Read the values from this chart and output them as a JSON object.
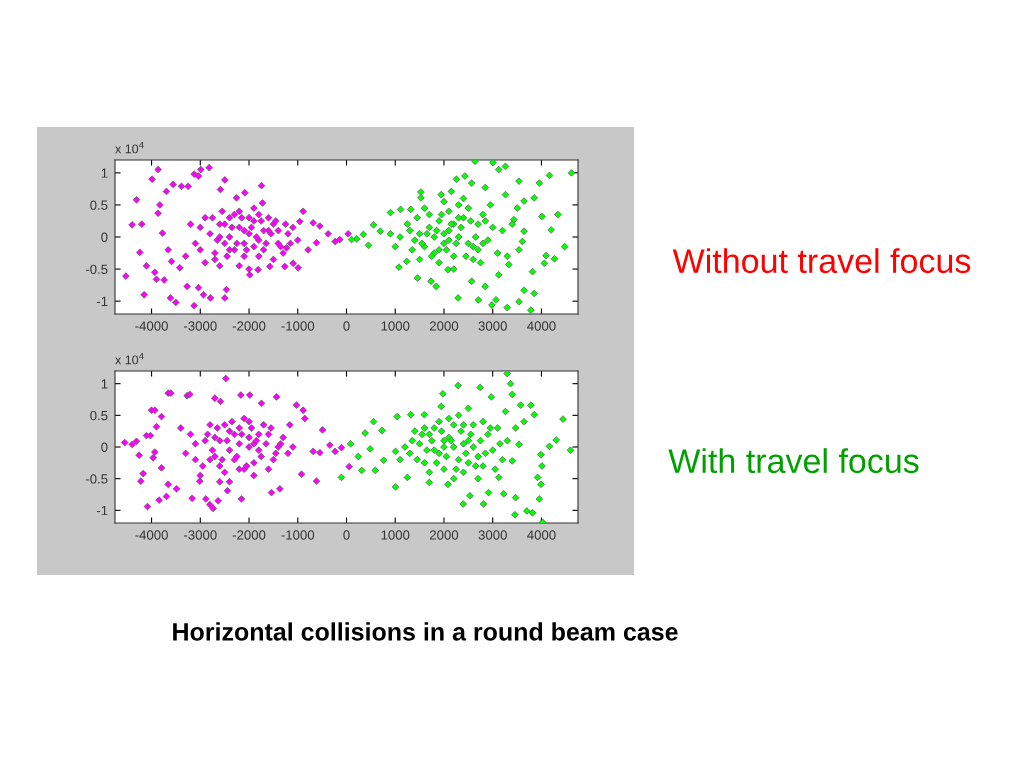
{
  "chart_data": [
    {
      "type": "scatter",
      "annotations": [
        "x 10$^{4}$",
        "Without travel focus"
      ],
      "marker": "diamond",
      "xlim": [
        -4750,
        4750
      ],
      "ylim": [
        -1.2,
        1.2
      ],
      "xticks": [
        -4000,
        -3000,
        -2000,
        -1000,
        0,
        1000,
        2000,
        3000,
        4000
      ],
      "yticks": [
        -1,
        -0.5,
        0,
        0.5,
        1
      ],
      "series": [
        {
          "color": "#ff00ff",
          "x": [
            -3865,
            -3988,
            -4309,
            -4398,
            -4200,
            -4528,
            -4241,
            -4152,
            -4104,
            -3933,
            -3899,
            -3741,
            -3612,
            -3502,
            -3126,
            -2989,
            -2818,
            -3126,
            -3037,
            -3557,
            -3386,
            -3249,
            -3694,
            -3830,
            -3865,
            -3776,
            -3659,
            -3591,
            -3420,
            -3270,
            -3037,
            -2934,
            -2791,
            -2497,
            -2463,
            -2497,
            -2586,
            -2257,
            -2086,
            -1744,
            -1724,
            -1984,
            -1813,
            -1573,
            -1265,
            -1094,
            -992,
            -889,
            -958,
            -684,
            -547,
            -376,
            -233,
            34,
            -137,
            -616,
            -787,
            -1231,
            -2600,
            -2400,
            -2200,
            -2000,
            -1800,
            -1600,
            -1400,
            -1200,
            -2300,
            -2100,
            -1900,
            -2500,
            -2700,
            -1700,
            -1500,
            -1300,
            -2200,
            -2800,
            -3000,
            -3100,
            -2900,
            -2600,
            -2000,
            -1800,
            -1000,
            -1100,
            -2400,
            -2100,
            -1900,
            -2750,
            -2650,
            -2550,
            -2450,
            -2350,
            -2250,
            -2150,
            -2050,
            -1950,
            -1850,
            -1750,
            -1650,
            -1550,
            -1450,
            -1350,
            -1250,
            -1150,
            -2600,
            -2300,
            -2000,
            -1700,
            -2400,
            -2100,
            -1800,
            -1500,
            -2900,
            -3200,
            -3300,
            -2200,
            -1900,
            -2500,
            -1600,
            -1400,
            -2700,
            -3000
          ],
          "values": [
            1.05,
            0.9,
            0.58,
            0.19,
            0.2,
            -0.61,
            -0.24,
            -0.9,
            -0.45,
            -0.55,
            -0.66,
            -0.67,
            -0.95,
            -1.02,
            -1.07,
            1.05,
            1.08,
            0.98,
            0.95,
            0.82,
            0.79,
            0.79,
            0.71,
            0.5,
            0.37,
            0.06,
            -0.2,
            -0.38,
            -0.48,
            -0.77,
            -0.79,
            -0.9,
            -0.95,
            -0.95,
            -0.82,
            0.89,
            0.74,
            0.61,
            0.69,
            0.8,
            0.53,
            -0.59,
            -0.51,
            -0.46,
            -0.46,
            -0.41,
            -0.48,
            0.4,
            0.24,
            0.22,
            0.17,
            0.05,
            -0.07,
            0.05,
            -0.04,
            -0.09,
            -0.2,
            -0.17,
            0.2,
            0.3,
            0.15,
            0.05,
            -0.05,
            0.1,
            -0.1,
            0.05,
            -0.2,
            -0.3,
            0.25,
            -0.1,
            -0.25,
            -0.2,
            0.2,
            -0.25,
            0.4,
            0.05,
            0.15,
            -0.1,
            -0.4,
            -0.45,
            -0.5,
            0.35,
            -0.05,
            0.15,
            0,
            0.1,
            -0.15,
            0.3,
            -0.05,
            0.4,
            -0.3,
            0.15,
            -0.1,
            0.3,
            -0.2,
            0.15,
            0,
            0.25,
            -0.1,
            0.05,
            0.25,
            -0.15,
            0.2,
            -0.1,
            0,
            0.35,
            0.3,
            0.1,
            -0.2,
            -0.1,
            -0.3,
            -0.35,
            0.3,
            0.2,
            -0.3,
            -0.45,
            0.45,
            0.2,
            0.3,
            0.1,
            -0.35,
            -0.2
          ]
        },
        {
          "color": "#00ff00",
          "x": [
            2637,
            3005,
            4615,
            4164,
            3956,
            3539,
            2429,
            2256,
            3123,
            3262,
            1527,
            3852,
            3643,
            4338,
            4011,
            4199,
            4476,
            4268,
            4060,
            4094,
            3817,
            3852,
            3782,
            3643,
            3539,
            3296,
            2984,
            3067,
            2707,
            2845,
            2290,
            1839,
            1735,
            1457,
            1076,
            1235,
            451,
            347,
            208,
            104,
            555,
            694,
            902,
            1110,
            1319,
            1527,
            1943,
            2151,
            2568,
            2845,
            3262,
            3505,
            3435,
            3643,
            3609,
            3539,
            3331,
            3123,
            2568,
            2082,
            1500,
            1700,
            1900,
            2100,
            2300,
            2500,
            2700,
            2900,
            1600,
            1800,
            2000,
            2200,
            2400,
            2600,
            1400,
            1300,
            2800,
            3000,
            2100,
            1900,
            2300,
            2500,
            1700,
            2700,
            3100,
            1100,
            2000,
            2200,
            1250,
            1350,
            1450,
            1550,
            1650,
            1750,
            1850,
            1950,
            2050,
            2150,
            2250,
            2350,
            2450,
            2550,
            2650,
            2750,
            2850,
            2950,
            1600,
            2000,
            2400,
            2200,
            1800,
            2600,
            3200,
            3300,
            1000,
            900,
            2100,
            1900,
            2300,
            2800,
            3400,
            1500
          ],
          "values": [
            1.18,
            1.16,
            1.0,
            0.96,
            0.84,
            0.87,
            0.95,
            0.9,
            1.05,
            1.1,
            0.7,
            0.61,
            0.56,
            0.35,
            0.32,
            0.11,
            -0.15,
            -0.34,
            -0.41,
            -0.29,
            -0.54,
            -0.88,
            -1.14,
            -0.83,
            -1.01,
            -1.1,
            -1.06,
            -0.98,
            -0.98,
            -0.77,
            -0.95,
            -0.77,
            -0.69,
            -0.64,
            -0.47,
            -0.38,
            -0.13,
            0.04,
            -0.03,
            -0.04,
            0.19,
            0.09,
            0.38,
            0.43,
            0.43,
            0.61,
            0.66,
            0.71,
            0.84,
            0.77,
            0.66,
            0.45,
            0.27,
            0.09,
            -0.07,
            -0.2,
            -0.43,
            -0.59,
            -0.69,
            -0.51,
            0.05,
            0.15,
            0.25,
            0.1,
            0,
            -0.1,
            0.2,
            -0.05,
            -0.15,
            -0.25,
            -0.1,
            -0.3,
            0.3,
            -0.35,
            -0.05,
            0.1,
            0.35,
            0.15,
            0.4,
            -0.4,
            0.5,
            0.45,
            0.35,
            -0.2,
            -0.25,
            0,
            0.05,
            0.2,
            0.2,
            -0.2,
            0.3,
            -0.1,
            0.05,
            -0.3,
            0.1,
            0.35,
            -0.2,
            0.2,
            -0.1,
            0.15,
            -0.3,
            0.25,
            0,
            -0.4,
            0.25,
            0.5,
            0.45,
            0.55,
            0.6,
            -0.5,
            0,
            -0.15,
            0.1,
            -0.3,
            -0.15,
            0.05,
            -0.05,
            -0.2,
            0.3,
            -0.1,
            0.2,
            -0.35
          ]
        }
      ]
    },
    {
      "type": "scatter",
      "annotations": [
        "x 10$^{4}$",
        "With travel focus",
        "Horizontal collisions in a round beam case"
      ],
      "marker": "diamond",
      "xlim": [
        -4750,
        4750
      ],
      "ylim": [
        -1.2,
        1.2
      ],
      "xticks": [
        -4000,
        -3000,
        -2000,
        -1000,
        0,
        1000,
        2000,
        3000,
        4000
      ],
      "yticks": [
        -1,
        -0.5,
        0,
        0.5,
        1
      ],
      "series": [
        {
          "color": "#ff00ff",
          "x": [
            -4549,
            -4398,
            -4309,
            -4255,
            -4104,
            -4022,
            -4172,
            -4220,
            -4084,
            -3844,
            -3694,
            -3659,
            -3605,
            -3270,
            -3215,
            -4001,
            -3933,
            -3796,
            -3899,
            -3933,
            -3967,
            -3796,
            -3659,
            -3488,
            -3167,
            -3010,
            -2886,
            -2804,
            -2736,
            -2634,
            -2476,
            -2702,
            -2586,
            -2168,
            -1984,
            -1744,
            -1436,
            -2155,
            -2442,
            -1539,
            -1368,
            -1026,
            -889,
            -855,
            -492,
            -616,
            -923,
            -684,
            -547,
            -342,
            -233,
            -103,
            55,
            -1163,
            -2600,
            -2400,
            -2200,
            -2000,
            -1800,
            -1600,
            -1400,
            -2300,
            -2100,
            -2500,
            -2700,
            -2900,
            -3100,
            -3200,
            -2000,
            -1700,
            -1900,
            -1500,
            -1300,
            -2800,
            -2400,
            -2200,
            -1200,
            -3000,
            -2600,
            -1900,
            -3100,
            -2950,
            -2850,
            -2750,
            -2650,
            -2550,
            -2450,
            -2350,
            -2250,
            -2150,
            -2050,
            -1950,
            -1850,
            -1750,
            -1650,
            -1550,
            -1450,
            -1350,
            -2600,
            -2300,
            -2000,
            -1800,
            -2500,
            -2100,
            -2700,
            -3300,
            -3400,
            -1100,
            -1900,
            -2400,
            -2200,
            -1600,
            -2800
          ],
          "values": [
            0.07,
            0.04,
            0.09,
            -0.13,
            0.18,
            0.18,
            -0.42,
            -0.54,
            -0.94,
            -0.84,
            -0.78,
            0.85,
            0.85,
            0.81,
            0.83,
            0.58,
            0.58,
            0.48,
            0.32,
            -0.08,
            -0.17,
            -0.33,
            -0.59,
            -0.66,
            -0.81,
            -0.54,
            -0.82,
            -0.91,
            -0.97,
            -0.85,
            1.08,
            0.77,
            0.72,
            0.82,
            0.82,
            0.69,
            0.79,
            -0.82,
            -0.69,
            -0.72,
            -0.66,
            0.66,
            0.58,
            0.45,
            0.27,
            -0.54,
            -0.43,
            -0.07,
            -0.09,
            0.03,
            -0.07,
            -0.01,
            -0.31,
            0.35,
            0.1,
            0.25,
            0.05,
            0.15,
            -0.05,
            0.2,
            0,
            -0.2,
            -0.35,
            -0.4,
            -0.15,
            0.1,
            -0.2,
            0.2,
            0.4,
            0.35,
            -0.25,
            -0.2,
            0.15,
            0.35,
            -0.05,
            0.3,
            -0.1,
            -0.45,
            -0.55,
            0.05,
            0.05,
            -0.3,
            0.2,
            -0.05,
            0.3,
            -0.2,
            0.1,
            0.4,
            -0.15,
            0.2,
            -0.3,
            0.3,
            0.1,
            -0.15,
            0.05,
            0.3,
            -0.1,
            0.05,
            -0.3,
            0.2,
            0,
            0.2,
            0.35,
            0.45,
            0.15,
            -0.1,
            0.3,
            0,
            -0.45,
            -0.55,
            -0.35,
            -0.35,
            -0.2
          ]
        },
        {
          "color": "#00ff00",
          "x": [
            3297,
            3366,
            3401,
            2290,
            2742,
            1978,
            2970,
            3574,
            3782,
            3852,
            4442,
            3643,
            4303,
            4164,
            4594,
            3990,
            4011,
            3921,
            3990,
            3956,
            3699,
            3817,
            3456,
            4025,
            2811,
            2394,
            2533,
            2915,
            3227,
            3470,
            1006,
            -104,
            312,
            590,
            243,
            83,
            382,
            555,
            729,
            1041,
            1319,
            1596,
            486,
            763,
            1006,
            1249,
            1700,
            2082,
            2498,
            3262,
            3470,
            3539,
            3401,
            3123,
            1943,
            1500,
            1700,
            1900,
            2100,
            2300,
            2500,
            2700,
            2900,
            1600,
            1800,
            2000,
            2200,
            2400,
            2600,
            2800,
            3000,
            1300,
            1400,
            2200,
            2400,
            2000,
            1800,
            3100,
            2500,
            1350,
            1450,
            1550,
            1650,
            1750,
            1850,
            1950,
            2050,
            2150,
            2250,
            2350,
            2450,
            2550,
            2650,
            2750,
            2850,
            2950,
            3050,
            3150,
            2100,
            2300,
            1900,
            2200,
            2600,
            1700,
            2000,
            1600,
            2400,
            2800,
            3200,
            1200,
            1100,
            3300,
            2700
          ],
          "values": [
            1.16,
            1.0,
            0.83,
            0.97,
            0.94,
            0.84,
            0.79,
            0.66,
            0.66,
            0.51,
            0.44,
            0.4,
            0.11,
            0.01,
            -0.05,
            -0.12,
            -0.3,
            -0.48,
            -0.59,
            -0.82,
            -1.01,
            -1.04,
            -1.07,
            -1.19,
            -0.9,
            -0.9,
            -0.77,
            -0.72,
            -0.74,
            -0.8,
            -0.63,
            -0.48,
            -0.37,
            -0.37,
            -0.15,
            0.05,
            0.22,
            0.4,
            0.26,
            0.48,
            0.51,
            0.51,
            -0.03,
            -0.21,
            -0.07,
            -0.48,
            -0.56,
            -0.59,
            0.61,
            0.56,
            0.3,
            0.04,
            -0.22,
            -0.48,
            0.64,
            0.05,
            0.2,
            -0.1,
            0.15,
            -0.2,
            0.1,
            -0.15,
            0.2,
            -0.25,
            0.3,
            -0.35,
            0.35,
            -0.4,
            0.35,
            -0.3,
            -0.05,
            -0.1,
            0.25,
            0,
            0.05,
            0.1,
            -0.05,
            0.3,
            -0.25,
            0.1,
            -0.2,
            0.2,
            -0.05,
            0.1,
            -0.25,
            0.25,
            -0.15,
            0.1,
            -0.35,
            0.25,
            -0.1,
            0.2,
            -0.3,
            0.1,
            -0.1,
            0.3,
            -0.35,
            0.05,
            0.45,
            0.5,
            0.4,
            -0.5,
            0,
            -0.4,
            0,
            0.3,
            0.35,
            0.4,
            -0.2,
            0,
            -0.2,
            0.1,
            -0.5
          ]
        }
      ]
    }
  ]
}
